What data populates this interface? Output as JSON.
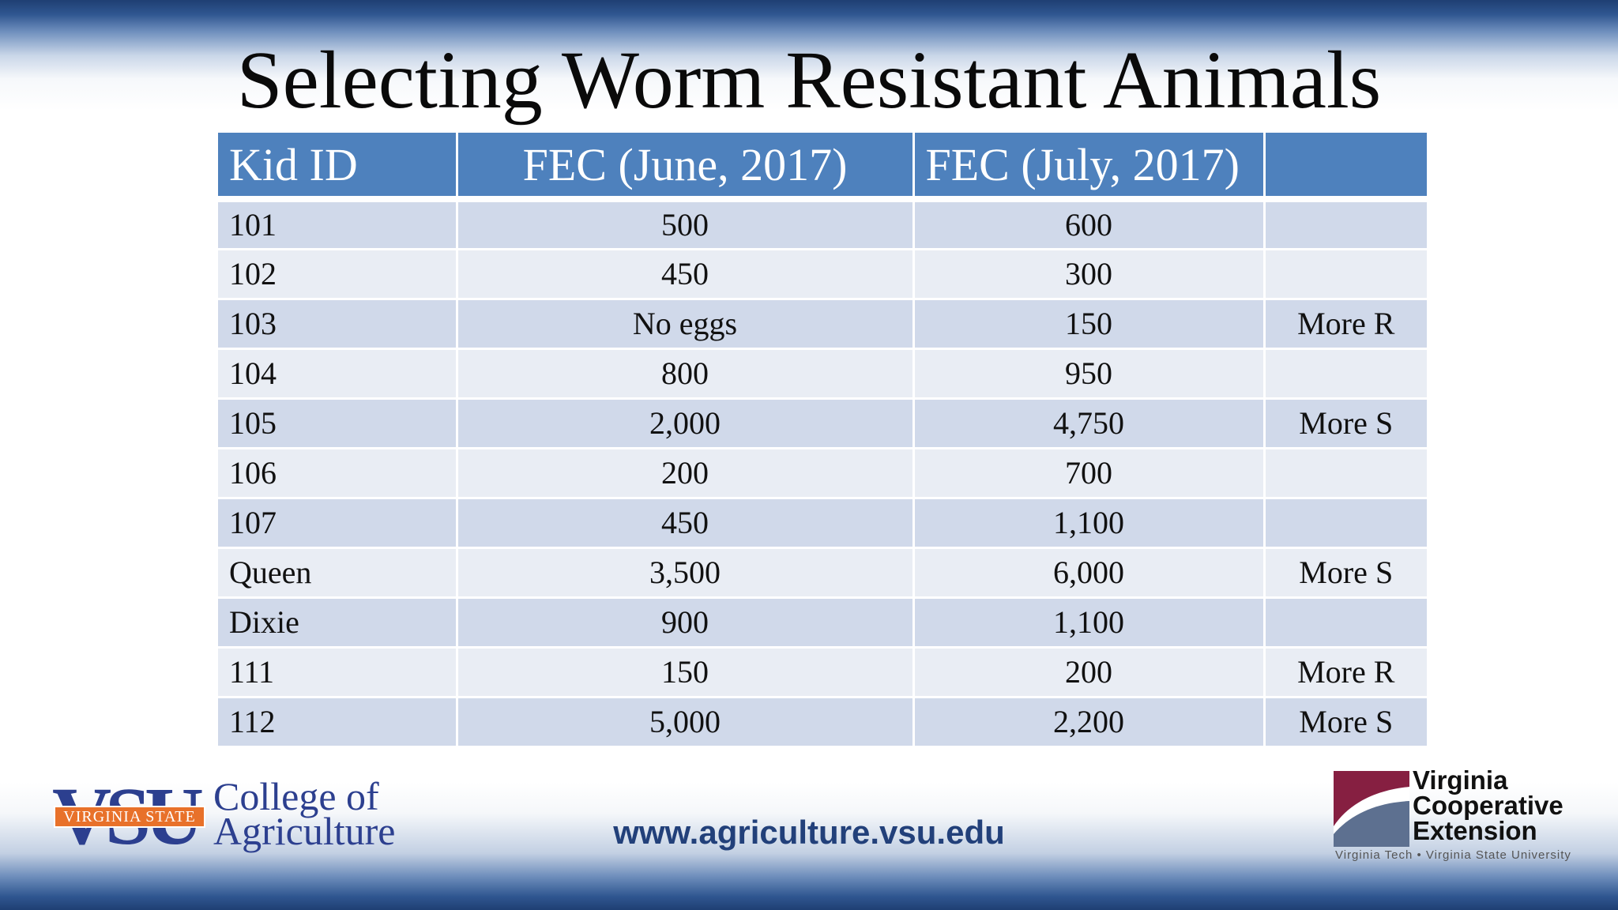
{
  "slide": {
    "title": "Selecting Worm Resistant Animals",
    "url": "www.agriculture.vsu.edu"
  },
  "table": {
    "headers": [
      "Kid ID",
      "FEC (June, 2017)",
      "FEC (July, 2017)",
      ""
    ],
    "rows": [
      [
        "101",
        "500",
        "600",
        ""
      ],
      [
        "102",
        "450",
        "300",
        ""
      ],
      [
        "103",
        "No eggs",
        "150",
        "More R"
      ],
      [
        "104",
        "800",
        "950",
        ""
      ],
      [
        "105",
        "2,000",
        "4,750",
        "More S"
      ],
      [
        "106",
        "200",
        "700",
        ""
      ],
      [
        "107",
        "450",
        "1,100",
        ""
      ],
      [
        "Queen",
        "3,500",
        "6,000",
        "More S"
      ],
      [
        "Dixie",
        "900",
        "1,100",
        ""
      ],
      [
        "111",
        "150",
        "200",
        "More R"
      ],
      [
        "112",
        "5,000",
        "2,200",
        "More S"
      ]
    ]
  },
  "logos": {
    "vsu": {
      "letters": "VSU",
      "band": "VIRGINIA STATE",
      "college_line1": "College of",
      "college_line2": "Agriculture"
    },
    "vce": {
      "line1": "Virginia",
      "line2": "Cooperative",
      "line3": "Extension",
      "sub": "Virginia Tech  •  Virginia State University"
    }
  },
  "colors": {
    "header_bg": "#4e81bd",
    "row_odd": "#d0d9ea",
    "row_even": "#e9edf4",
    "vsu_blue": "#2c3f8f",
    "vsu_orange": "#e8712a",
    "url_color": "#22407a",
    "vce_maroon": "#861f41",
    "vce_slate": "#5d7090"
  }
}
